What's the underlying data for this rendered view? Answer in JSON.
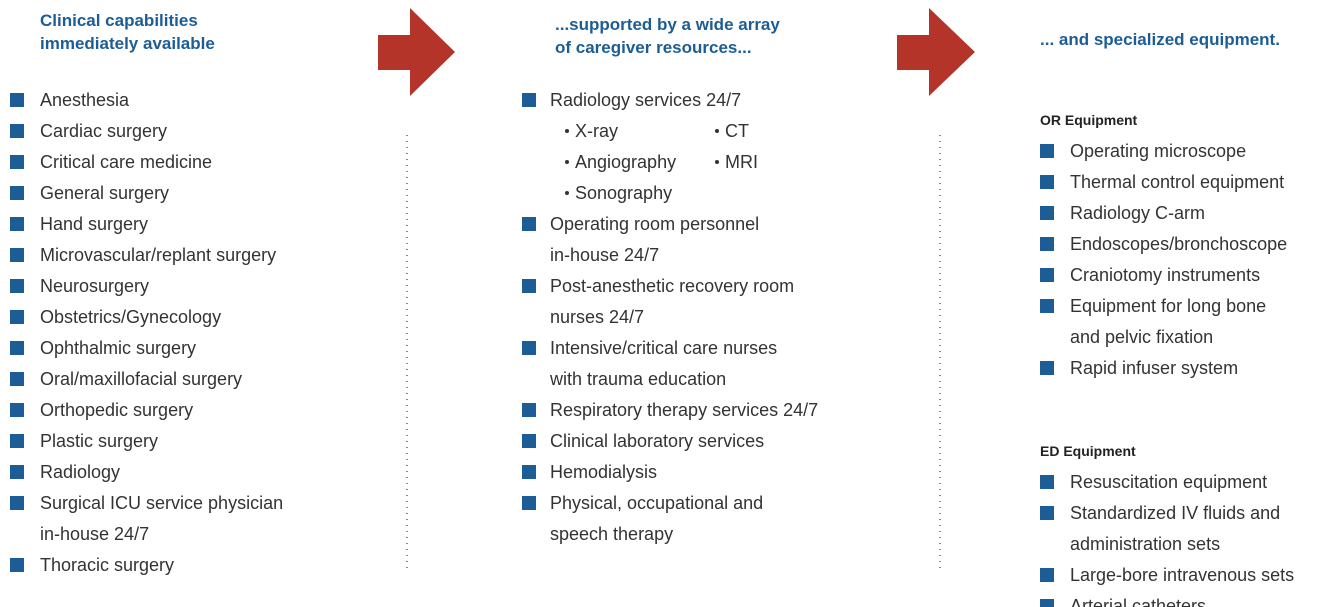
{
  "columns": [
    {
      "title": [
        "Clinical capabilities",
        "immediately available"
      ],
      "items": [
        {
          "lines": [
            "Anesthesia"
          ]
        },
        {
          "lines": [
            "Cardiac surgery"
          ]
        },
        {
          "lines": [
            "Critical care medicine"
          ]
        },
        {
          "lines": [
            "General surgery"
          ]
        },
        {
          "lines": [
            "Hand surgery"
          ]
        },
        {
          "lines": [
            "Microvascular/replant surgery"
          ]
        },
        {
          "lines": [
            "Neurosurgery"
          ]
        },
        {
          "lines": [
            "Obstetrics/Gynecology"
          ]
        },
        {
          "lines": [
            "Ophthalmic surgery"
          ]
        },
        {
          "lines": [
            "Oral/maxillofacial surgery"
          ]
        },
        {
          "lines": [
            "Orthopedic surgery"
          ]
        },
        {
          "lines": [
            "Plastic surgery"
          ]
        },
        {
          "lines": [
            "Radiology"
          ]
        },
        {
          "lines": [
            "Surgical ICU service physician",
            "in-house 24/7"
          ]
        },
        {
          "lines": [
            "Thoracic surgery"
          ]
        }
      ]
    },
    {
      "title": [
        "...supported by a wide array",
        "of caregiver resources..."
      ],
      "items": [
        {
          "lines": [
            "Radiology services 24/7"
          ],
          "subitems": [
            "X-ray",
            "CT",
            "Angiography",
            "MRI",
            "Sonography"
          ]
        },
        {
          "lines": [
            "Operating room personnel",
            "in-house 24/7"
          ]
        },
        {
          "lines": [
            "Post-anesthetic recovery room",
            "nurses 24/7"
          ]
        },
        {
          "lines": [
            "Intensive/critical care nurses",
            "with trauma education"
          ]
        },
        {
          "lines": [
            "Respiratory therapy services 24/7"
          ]
        },
        {
          "lines": [
            "Clinical laboratory services"
          ]
        },
        {
          "lines": [
            "Hemodialysis"
          ]
        },
        {
          "lines": [
            "Physical, occupational and",
            "speech therapy"
          ]
        }
      ]
    },
    {
      "title": [
        "... and specialized equipment."
      ],
      "groups": [
        {
          "heading": "OR Equipment",
          "items": [
            {
              "lines": [
                "Operating microscope"
              ]
            },
            {
              "lines": [
                "Thermal control equipment"
              ]
            },
            {
              "lines": [
                "Radiology C-arm"
              ]
            },
            {
              "lines": [
                "Endoscopes/bronchoscope"
              ]
            },
            {
              "lines": [
                "Craniotomy instruments"
              ]
            },
            {
              "lines": [
                "Equipment for long bone",
                "and pelvic fixation"
              ]
            },
            {
              "lines": [
                "Rapid infuser system"
              ]
            }
          ]
        },
        {
          "heading": "ED Equipment",
          "items": [
            {
              "lines": [
                "Resuscitation equipment"
              ]
            },
            {
              "lines": [
                "Standardized IV fluids and",
                "administration sets"
              ]
            },
            {
              "lines": [
                "Large-bore intravenous sets"
              ]
            },
            {
              "lines": [
                "Arterial catheters"
              ]
            }
          ]
        }
      ]
    }
  ]
}
